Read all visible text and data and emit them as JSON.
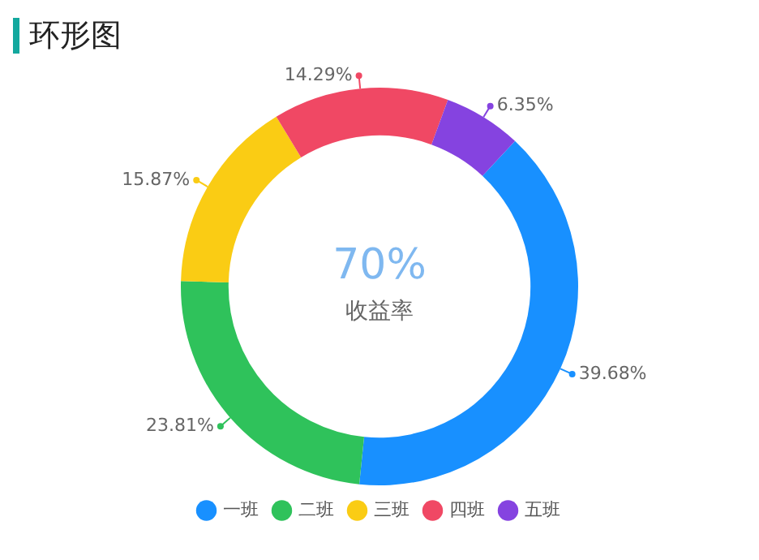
{
  "chart_data": {
    "type": "donut",
    "title": "环形图",
    "categories": [
      "一班",
      "二班",
      "三班",
      "四班",
      "五班"
    ],
    "values": [
      39.68,
      23.81,
      15.87,
      14.29,
      6.35
    ],
    "colors": [
      "#1890ff",
      "#2fc25b",
      "#facc14",
      "#f04864",
      "#8543e0"
    ],
    "value_labels": [
      "39.68%",
      "23.81%",
      "15.87%",
      "14.29%",
      "6.35%"
    ],
    "legend": "bottom",
    "annotations": [
      "70%",
      "收益率"
    ]
  }
}
